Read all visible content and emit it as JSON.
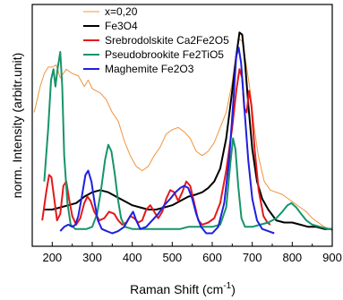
{
  "chart_data": {
    "type": "line",
    "xlabel": "Raman Shift (cm",
    "xlabel_sup": "-1",
    "xlabel_close": ")",
    "ylabel": "norm. Intensity (arbitr.unit)",
    "xlim": [
      150,
      900
    ],
    "ylim": [
      0,
      1.12
    ],
    "x_ticks": [
      200,
      300,
      400,
      500,
      600,
      700,
      800,
      900
    ],
    "y_tick_labels_shown": false,
    "grid": false,
    "legend_position": "top-center",
    "series": [
      {
        "name": "x=0,20",
        "color": "#f0943c",
        "width": 1,
        "points": [
          [
            155,
            0.62
          ],
          [
            170,
            0.74
          ],
          [
            180,
            0.8
          ],
          [
            190,
            0.83
          ],
          [
            200,
            0.83
          ],
          [
            210,
            0.84
          ],
          [
            220,
            0.78
          ],
          [
            235,
            0.82
          ],
          [
            250,
            0.8
          ],
          [
            265,
            0.79
          ],
          [
            280,
            0.74
          ],
          [
            290,
            0.77
          ],
          [
            300,
            0.73
          ],
          [
            310,
            0.72
          ],
          [
            320,
            0.71
          ],
          [
            335,
            0.68
          ],
          [
            350,
            0.62
          ],
          [
            365,
            0.58
          ],
          [
            380,
            0.49
          ],
          [
            395,
            0.42
          ],
          [
            410,
            0.37
          ],
          [
            425,
            0.35
          ],
          [
            440,
            0.37
          ],
          [
            455,
            0.42
          ],
          [
            470,
            0.46
          ],
          [
            485,
            0.52
          ],
          [
            500,
            0.54
          ],
          [
            515,
            0.55
          ],
          [
            530,
            0.53
          ],
          [
            545,
            0.5
          ],
          [
            560,
            0.44
          ],
          [
            575,
            0.42
          ],
          [
            590,
            0.44
          ],
          [
            605,
            0.48
          ],
          [
            620,
            0.55
          ],
          [
            635,
            0.62
          ],
          [
            650,
            0.76
          ],
          [
            660,
            0.9
          ],
          [
            668,
            0.96
          ],
          [
            675,
            0.95
          ],
          [
            685,
            0.84
          ],
          [
            695,
            0.72
          ],
          [
            705,
            0.55
          ],
          [
            715,
            0.42
          ],
          [
            730,
            0.3
          ],
          [
            745,
            0.26
          ],
          [
            760,
            0.25
          ],
          [
            775,
            0.24
          ],
          [
            790,
            0.22
          ],
          [
            805,
            0.2
          ],
          [
            820,
            0.18
          ],
          [
            835,
            0.16
          ],
          [
            850,
            0.13
          ],
          [
            865,
            0.11
          ],
          [
            880,
            0.09
          ],
          [
            895,
            0.08
          ],
          [
            900,
            0.07
          ]
        ]
      },
      {
        "name": "Fe3O4",
        "color": "#000000",
        "width": 2,
        "points": [
          [
            180,
            0.17
          ],
          [
            200,
            0.17
          ],
          [
            220,
            0.18
          ],
          [
            240,
            0.19
          ],
          [
            260,
            0.2
          ],
          [
            280,
            0.23
          ],
          [
            300,
            0.25
          ],
          [
            320,
            0.26
          ],
          [
            340,
            0.25
          ],
          [
            360,
            0.23
          ],
          [
            380,
            0.21
          ],
          [
            400,
            0.19
          ],
          [
            420,
            0.18
          ],
          [
            440,
            0.17
          ],
          [
            460,
            0.17
          ],
          [
            480,
            0.18
          ],
          [
            500,
            0.19
          ],
          [
            520,
            0.21
          ],
          [
            540,
            0.23
          ],
          [
            560,
            0.24
          ],
          [
            575,
            0.25
          ],
          [
            590,
            0.27
          ],
          [
            605,
            0.3
          ],
          [
            620,
            0.36
          ],
          [
            635,
            0.5
          ],
          [
            650,
            0.72
          ],
          [
            660,
            0.88
          ],
          [
            668,
            0.99
          ],
          [
            675,
            0.98
          ],
          [
            682,
            0.85
          ],
          [
            690,
            0.66
          ],
          [
            700,
            0.45
          ],
          [
            712,
            0.3
          ],
          [
            725,
            0.22
          ],
          [
            740,
            0.17
          ],
          [
            760,
            0.12
          ],
          [
            780,
            0.11
          ],
          [
            800,
            0.11
          ],
          [
            820,
            0.1
          ],
          [
            840,
            0.09
          ],
          [
            860,
            0.09
          ],
          [
            880,
            0.08
          ],
          [
            900,
            0.08
          ]
        ]
      },
      {
        "name": "Srebrodolskite Ca2Fe2O5",
        "color": "#e4191c",
        "width": 2,
        "points": [
          [
            175,
            0.12
          ],
          [
            185,
            0.25
          ],
          [
            192,
            0.33
          ],
          [
            198,
            0.32
          ],
          [
            205,
            0.22
          ],
          [
            212,
            0.12
          ],
          [
            220,
            0.15
          ],
          [
            228,
            0.28
          ],
          [
            235,
            0.3
          ],
          [
            242,
            0.22
          ],
          [
            250,
            0.14
          ],
          [
            260,
            0.1
          ],
          [
            270,
            0.13
          ],
          [
            280,
            0.2
          ],
          [
            288,
            0.23
          ],
          [
            296,
            0.21
          ],
          [
            305,
            0.16
          ],
          [
            318,
            0.12
          ],
          [
            330,
            0.13
          ],
          [
            342,
            0.16
          ],
          [
            355,
            0.15
          ],
          [
            365,
            0.12
          ],
          [
            375,
            0.1
          ],
          [
            385,
            0.11
          ],
          [
            395,
            0.14
          ],
          [
            405,
            0.13
          ],
          [
            415,
            0.11
          ],
          [
            425,
            0.12
          ],
          [
            435,
            0.17
          ],
          [
            445,
            0.19
          ],
          [
            455,
            0.16
          ],
          [
            465,
            0.13
          ],
          [
            475,
            0.16
          ],
          [
            485,
            0.22
          ],
          [
            495,
            0.26
          ],
          [
            505,
            0.25
          ],
          [
            515,
            0.21
          ],
          [
            525,
            0.25
          ],
          [
            535,
            0.3
          ],
          [
            545,
            0.28
          ],
          [
            555,
            0.2
          ],
          [
            565,
            0.12
          ],
          [
            575,
            0.1
          ],
          [
            590,
            0.11
          ],
          [
            605,
            0.13
          ],
          [
            620,
            0.2
          ],
          [
            635,
            0.35
          ],
          [
            650,
            0.55
          ],
          [
            660,
            0.72
          ],
          [
            668,
            0.82
          ],
          [
            675,
            0.78
          ],
          [
            680,
            0.64
          ],
          [
            686,
            0.62
          ],
          [
            692,
            0.72
          ],
          [
            698,
            0.65
          ],
          [
            706,
            0.45
          ],
          [
            716,
            0.26
          ],
          [
            728,
            0.14
          ],
          [
            738,
            0.11
          ],
          [
            745,
            0.1
          ]
        ]
      },
      {
        "name": "Pseudobrookite Fe2TiO5",
        "color": "#16946a",
        "width": 2,
        "points": [
          [
            180,
            0.3
          ],
          [
            190,
            0.55
          ],
          [
            197,
            0.77
          ],
          [
            203,
            0.82
          ],
          [
            208,
            0.74
          ],
          [
            214,
            0.83
          ],
          [
            220,
            0.9
          ],
          [
            225,
            0.74
          ],
          [
            230,
            0.42
          ],
          [
            238,
            0.2
          ],
          [
            246,
            0.1
          ],
          [
            258,
            0.08
          ],
          [
            272,
            0.08
          ],
          [
            286,
            0.08
          ],
          [
            300,
            0.09
          ],
          [
            312,
            0.15
          ],
          [
            322,
            0.26
          ],
          [
            332,
            0.4
          ],
          [
            340,
            0.47
          ],
          [
            348,
            0.44
          ],
          [
            356,
            0.34
          ],
          [
            364,
            0.22
          ],
          [
            372,
            0.13
          ],
          [
            382,
            0.09
          ],
          [
            400,
            0.08
          ],
          [
            420,
            0.08
          ],
          [
            440,
            0.08
          ],
          [
            460,
            0.08
          ],
          [
            480,
            0.08
          ],
          [
            500,
            0.08
          ],
          [
            520,
            0.08
          ],
          [
            540,
            0.09
          ],
          [
            560,
            0.09
          ],
          [
            580,
            0.09
          ],
          [
            600,
            0.09
          ],
          [
            620,
            0.1
          ],
          [
            635,
            0.18
          ],
          [
            645,
            0.38
          ],
          [
            652,
            0.5
          ],
          [
            658,
            0.45
          ],
          [
            665,
            0.28
          ],
          [
            673,
            0.13
          ],
          [
            682,
            0.09
          ],
          [
            700,
            0.09
          ],
          [
            720,
            0.1
          ],
          [
            740,
            0.11
          ],
          [
            760,
            0.13
          ],
          [
            775,
            0.16
          ],
          [
            788,
            0.19
          ],
          [
            798,
            0.2
          ],
          [
            810,
            0.18
          ],
          [
            822,
            0.15
          ],
          [
            835,
            0.12
          ],
          [
            850,
            0.1
          ],
          [
            870,
            0.09
          ],
          [
            890,
            0.08
          ],
          [
            900,
            0.08
          ]
        ]
      },
      {
        "name": "Maghemite Fe2O3",
        "color": "#1f1fe0",
        "width": 2,
        "points": [
          [
            220,
            0.07
          ],
          [
            230,
            0.09
          ],
          [
            240,
            0.1
          ],
          [
            250,
            0.09
          ],
          [
            258,
            0.1
          ],
          [
            265,
            0.14
          ],
          [
            275,
            0.24
          ],
          [
            283,
            0.33
          ],
          [
            290,
            0.35
          ],
          [
            298,
            0.3
          ],
          [
            306,
            0.2
          ],
          [
            314,
            0.12
          ],
          [
            324,
            0.08
          ],
          [
            336,
            0.07
          ],
          [
            350,
            0.06
          ],
          [
            365,
            0.07
          ],
          [
            380,
            0.09
          ],
          [
            395,
            0.14
          ],
          [
            402,
            0.16
          ],
          [
            410,
            0.12
          ],
          [
            420,
            0.08
          ],
          [
            435,
            0.09
          ],
          [
            450,
            0.12
          ],
          [
            465,
            0.15
          ],
          [
            480,
            0.19
          ],
          [
            495,
            0.22
          ],
          [
            508,
            0.25
          ],
          [
            520,
            0.27
          ],
          [
            530,
            0.28
          ],
          [
            540,
            0.27
          ],
          [
            550,
            0.22
          ],
          [
            560,
            0.15
          ],
          [
            572,
            0.09
          ],
          [
            585,
            0.06
          ],
          [
            600,
            0.06
          ],
          [
            615,
            0.09
          ],
          [
            630,
            0.2
          ],
          [
            642,
            0.4
          ],
          [
            652,
            0.65
          ],
          [
            660,
            0.88
          ],
          [
            666,
            0.92
          ],
          [
            672,
            0.85
          ],
          [
            680,
            0.65
          ],
          [
            690,
            0.4
          ],
          [
            700,
            0.22
          ],
          [
            712,
            0.12
          ],
          [
            725,
            0.08
          ],
          [
            740,
            0.07
          ],
          [
            755,
            0.06
          ]
        ]
      }
    ]
  }
}
